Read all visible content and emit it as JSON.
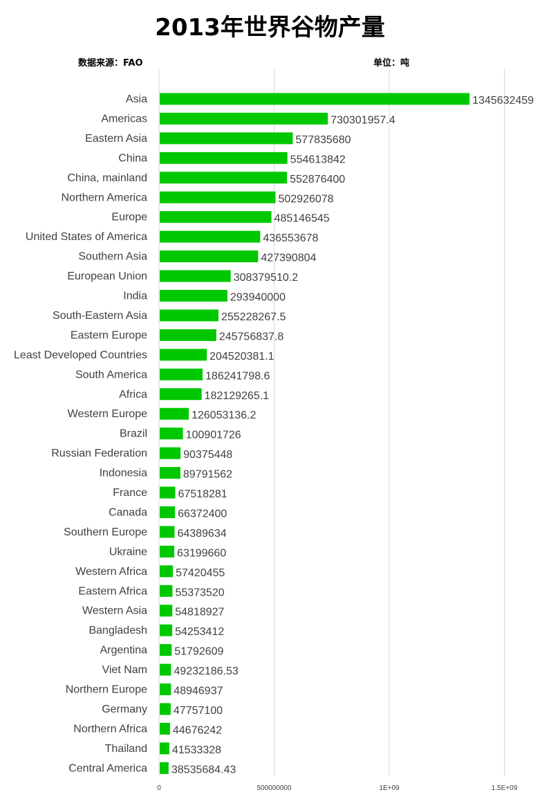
{
  "header": {
    "title": "2013年世界谷物产量",
    "source": "数据来源：FAO",
    "unit": "单位：吨"
  },
  "chart_data": {
    "type": "bar",
    "orientation": "horizontal",
    "title": "2013年世界谷物产量",
    "xlabel": "",
    "ylabel": "",
    "xlim": [
      0,
      1650000000
    ],
    "x_ticks": [
      0,
      500000000,
      1000000000,
      1500000000
    ],
    "x_tick_labels": [
      "0",
      "500000000",
      "1E+09",
      "1.5E+09"
    ],
    "grid": "vertical",
    "bar_color": "#00c800",
    "categories": [
      "Asia",
      "Americas",
      "Eastern Asia",
      "China",
      "China, mainland",
      "Northern America",
      "Europe",
      "United States of America",
      "Southern Asia",
      "European Union",
      "India",
      "South-Eastern Asia",
      "Eastern Europe",
      "Least Developed Countries",
      "South America",
      "Africa",
      "Western Europe",
      "Brazil",
      "Russian Federation",
      "Indonesia",
      "France",
      "Canada",
      "Southern Europe",
      "Ukraine",
      "Western Africa",
      "Eastern Africa",
      "Western Asia",
      "Bangladesh",
      "Argentina",
      "Viet Nam",
      "Northern Europe",
      "Germany",
      "Northern Africa",
      "Thailand",
      "Central America"
    ],
    "values": [
      1345632459,
      730301957.4,
      577835680,
      554613842,
      552876400,
      502926078,
      485146545,
      436553678,
      427390804,
      308379510.2,
      293940000,
      255228267.5,
      245756837.8,
      204520381.1,
      186241798.6,
      182129265.1,
      126053136.2,
      100901726,
      90375448,
      89791562,
      67518281,
      66372400,
      64389634,
      63199660,
      57420455,
      55373520,
      54818927,
      54253412,
      51792609,
      49232186.53,
      48946937,
      47757100,
      44676242,
      41533328,
      38535684.43
    ],
    "value_labels": [
      "1345632459",
      "730301957.4",
      "577835680",
      "554613842",
      "552876400",
      "502926078",
      "485146545",
      "436553678",
      "427390804",
      "308379510.2",
      "293940000",
      "255228267.5",
      "245756837.8",
      "204520381.1",
      "186241798.6",
      "182129265.1",
      "126053136.2",
      "100901726",
      "90375448",
      "89791562",
      "67518281",
      "66372400",
      "64389634",
      "63199660",
      "57420455",
      "55373520",
      "54818927",
      "54253412",
      "51792609",
      "49232186.53",
      "48946937",
      "47757100",
      "44676242",
      "41533328",
      "38535684.43"
    ]
  }
}
